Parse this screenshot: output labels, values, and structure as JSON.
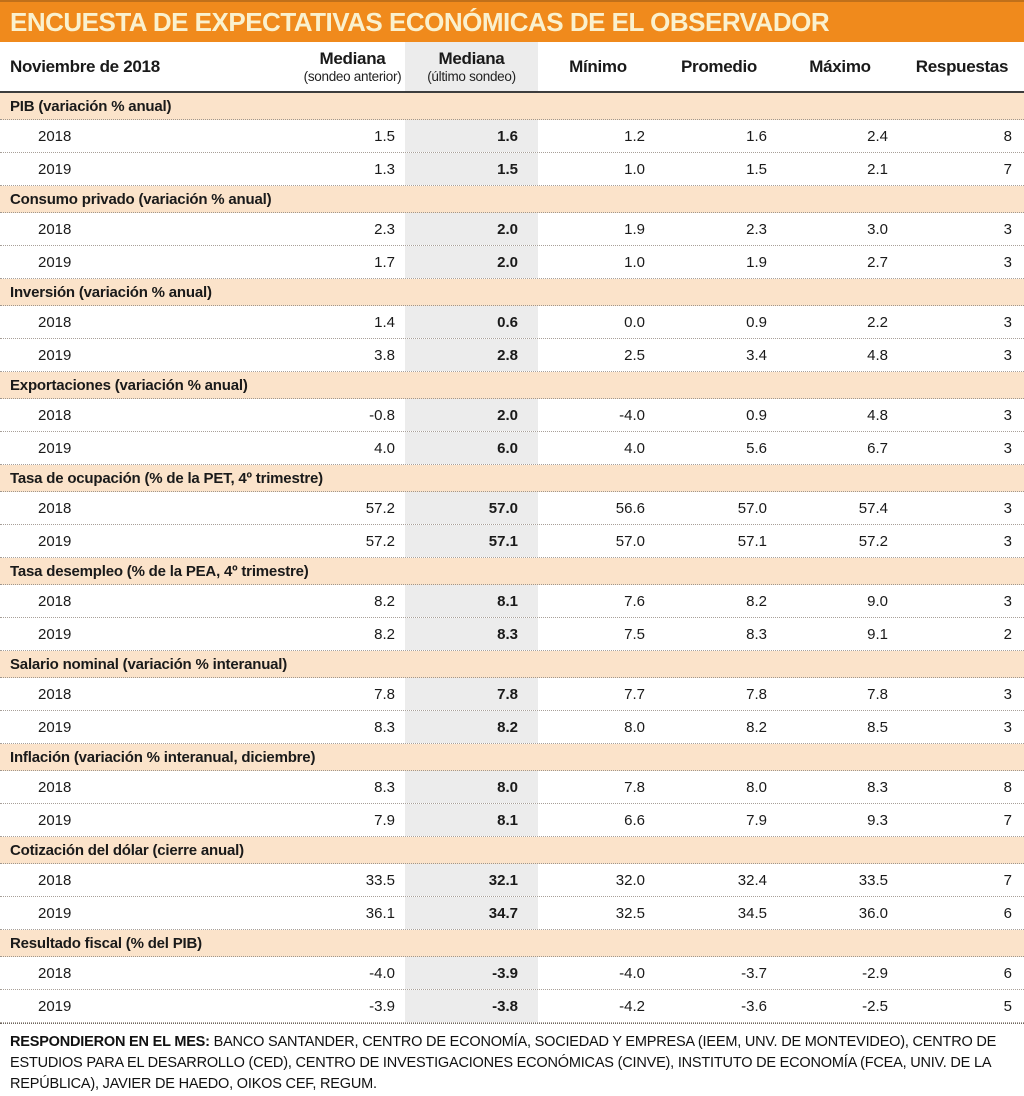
{
  "title": "ENCUESTA DE EXPECTATIVAS ECONÓMICAS DE EL OBSERVADOR",
  "colors": {
    "title_bar_bg": "#f08a1c",
    "title_text": "#faf1ce",
    "section_row_bg": "#fbe3ca",
    "highlight_column_bg": "#ececec"
  },
  "chart_data": {
    "type": "table",
    "title": "ENCUESTA DE EXPECTATIVAS ECONÓMICAS DE EL OBSERVADOR",
    "period_label": "Noviembre de 2018",
    "columns": [
      {
        "label": "Mediana",
        "sublabel": "(sondeo anterior)"
      },
      {
        "label": "Mediana",
        "sublabel": "(último sondeo)",
        "highlight": true
      },
      {
        "label": "Mínimo",
        "sublabel": ""
      },
      {
        "label": "Promedio",
        "sublabel": ""
      },
      {
        "label": "Máximo",
        "sublabel": ""
      },
      {
        "label": "Respuestas",
        "sublabel": ""
      }
    ],
    "sections": [
      {
        "name": "PIB (variación % anual)",
        "rows": [
          {
            "year": "2018",
            "values": [
              "1.5",
              "1.6",
              "1.2",
              "1.6",
              "2.4",
              "8"
            ]
          },
          {
            "year": "2019",
            "values": [
              "1.3",
              "1.5",
              "1.0",
              "1.5",
              "2.1",
              "7"
            ]
          }
        ]
      },
      {
        "name": "Consumo privado (variación % anual)",
        "rows": [
          {
            "year": "2018",
            "values": [
              "2.3",
              "2.0",
              "1.9",
              "2.3",
              "3.0",
              "3"
            ]
          },
          {
            "year": "2019",
            "values": [
              "1.7",
              "2.0",
              "1.0",
              "1.9",
              "2.7",
              "3"
            ]
          }
        ]
      },
      {
        "name": "Inversión (variación % anual)",
        "rows": [
          {
            "year": "2018",
            "values": [
              "1.4",
              "0.6",
              "0.0",
              "0.9",
              "2.2",
              "3"
            ]
          },
          {
            "year": "2019",
            "values": [
              "3.8",
              "2.8",
              "2.5",
              "3.4",
              "4.8",
              "3"
            ]
          }
        ]
      },
      {
        "name": "Exportaciones (variación % anual)",
        "rows": [
          {
            "year": "2018",
            "values": [
              "-0.8",
              "2.0",
              "-4.0",
              "0.9",
              "4.8",
              "3"
            ]
          },
          {
            "year": "2019",
            "values": [
              "4.0",
              "6.0",
              "4.0",
              "5.6",
              "6.7",
              "3"
            ]
          }
        ]
      },
      {
        "name": "Tasa de ocupación (% de la PET, 4º trimestre)",
        "rows": [
          {
            "year": "2018",
            "values": [
              "57.2",
              "57.0",
              "56.6",
              "57.0",
              "57.4",
              "3"
            ]
          },
          {
            "year": "2019",
            "values": [
              "57.2",
              "57.1",
              "57.0",
              "57.1",
              "57.2",
              "3"
            ]
          }
        ]
      },
      {
        "name": "Tasa desempleo (% de la PEA, 4º trimestre)",
        "rows": [
          {
            "year": "2018",
            "values": [
              "8.2",
              "8.1",
              "7.6",
              "8.2",
              "9.0",
              "3"
            ]
          },
          {
            "year": "2019",
            "values": [
              "8.2",
              "8.3",
              "7.5",
              "8.3",
              "9.1",
              "2"
            ]
          }
        ]
      },
      {
        "name": "Salario nominal (variación % interanual)",
        "rows": [
          {
            "year": "2018",
            "values": [
              "7.8",
              "7.8",
              "7.7",
              "7.8",
              "7.8",
              "3"
            ]
          },
          {
            "year": "2019",
            "values": [
              "8.3",
              "8.2",
              "8.0",
              "8.2",
              "8.5",
              "3"
            ]
          }
        ]
      },
      {
        "name": "Inflación (variación % interanual, diciembre)",
        "rows": [
          {
            "year": "2018",
            "values": [
              "8.3",
              "8.0",
              "7.8",
              "8.0",
              "8.3",
              "8"
            ]
          },
          {
            "year": "2019",
            "values": [
              "7.9",
              "8.1",
              "6.6",
              "7.9",
              "9.3",
              "7"
            ]
          }
        ]
      },
      {
        "name": "Cotización del dólar (cierre anual)",
        "rows": [
          {
            "year": "2018",
            "values": [
              "33.5",
              "32.1",
              "32.0",
              "32.4",
              "33.5",
              "7"
            ]
          },
          {
            "year": "2019",
            "values": [
              "36.1",
              "34.7",
              "32.5",
              "34.5",
              "36.0",
              "6"
            ]
          }
        ]
      },
      {
        "name": "Resultado fiscal (% del PIB)",
        "rows": [
          {
            "year": "2018",
            "values": [
              "-4.0",
              "-3.9",
              "-4.0",
              "-3.7",
              "-2.9",
              "6"
            ]
          },
          {
            "year": "2019",
            "values": [
              "-3.9",
              "-3.8",
              "-4.2",
              "-3.6",
              "-2.5",
              "5"
            ]
          }
        ]
      }
    ],
    "footer_lead": "RESPONDIERON EN EL MES:",
    "footer_text": " BANCO SANTANDER, CENTRO DE ECONOMÍA, SOCIEDAD Y EMPRESA (IEEM, UNV. DE MONTEVIDEO), CENTRO DE ESTUDIOS PARA EL DESARROLLO (CED), CENTRO DE INVESTIGACIONES ECONÓMICAS (CINVE), INSTITUTO DE ECONOMÍA (FCEA, UNIV. DE LA REPÚBLICA), JAVIER DE HAEDO, OIKOS CEF, REGUM."
  }
}
